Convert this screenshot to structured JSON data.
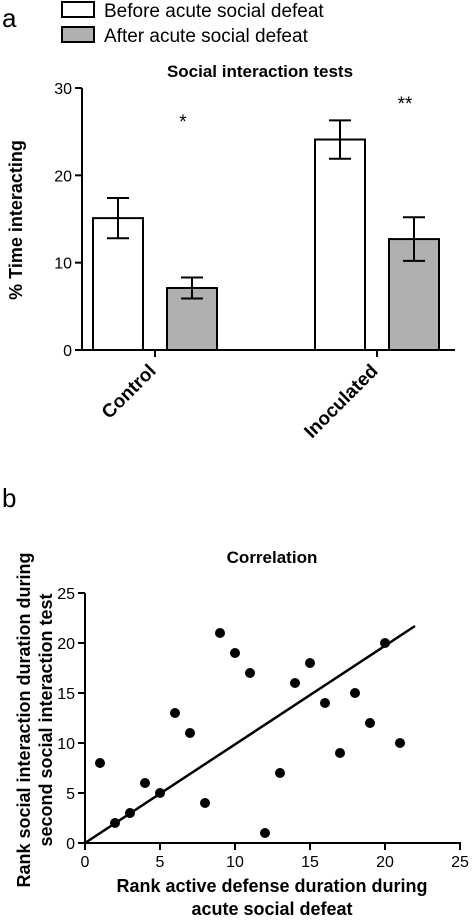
{
  "chart_data": [
    {
      "type": "bar",
      "panel_letter": "a",
      "title": "Social interaction tests",
      "ylabel": "% Time interacting",
      "xlabel": "",
      "ylim": [
        0,
        30
      ],
      "yticks": [
        0,
        10,
        20,
        30
      ],
      "categories": [
        "Control",
        "Inoculated"
      ],
      "series": [
        {
          "name": "Before acute social defeat",
          "values": [
            15.1,
            24.1
          ],
          "errors": [
            2.3,
            2.2
          ],
          "color": "#ffffff"
        },
        {
          "name": "After acute social defeat",
          "values": [
            7.1,
            12.7
          ],
          "errors": [
            1.2,
            2.5
          ],
          "color": "#b0b0b0"
        }
      ],
      "significance": [
        "*",
        "**"
      ],
      "legend": "top-left",
      "grid": false
    },
    {
      "type": "scatter",
      "panel_letter": "b",
      "title": "Correlation",
      "xlabel": "Rank active defense duration during acute social defeat",
      "xlabel_lines": [
        "Rank active defense duration during",
        "acute social defeat"
      ],
      "ylabel": "Rank social interaction duration during second social interaction test",
      "ylabel_lines": [
        "Rank social interaction duration during",
        "second social interaction test"
      ],
      "xlim": [
        0,
        25
      ],
      "ylim": [
        0,
        25
      ],
      "xticks": [
        0,
        5,
        10,
        15,
        20,
        25
      ],
      "yticks": [
        0,
        5,
        10,
        15,
        20,
        25
      ],
      "points": [
        [
          1,
          8
        ],
        [
          2,
          2
        ],
        [
          3,
          3
        ],
        [
          4,
          6
        ],
        [
          5,
          5
        ],
        [
          6,
          13
        ],
        [
          7,
          11
        ],
        [
          8,
          4
        ],
        [
          9,
          21
        ],
        [
          10,
          19
        ],
        [
          11,
          17
        ],
        [
          12,
          1
        ],
        [
          13,
          7
        ],
        [
          14,
          16
        ],
        [
          15,
          18
        ],
        [
          16,
          14
        ],
        [
          17,
          9
        ],
        [
          18,
          15
        ],
        [
          19,
          12
        ],
        [
          20,
          20
        ],
        [
          21,
          10
        ]
      ],
      "fit_line": {
        "x": [
          0,
          22
        ],
        "y": [
          0,
          21.7
        ]
      },
      "grid": false
    }
  ]
}
